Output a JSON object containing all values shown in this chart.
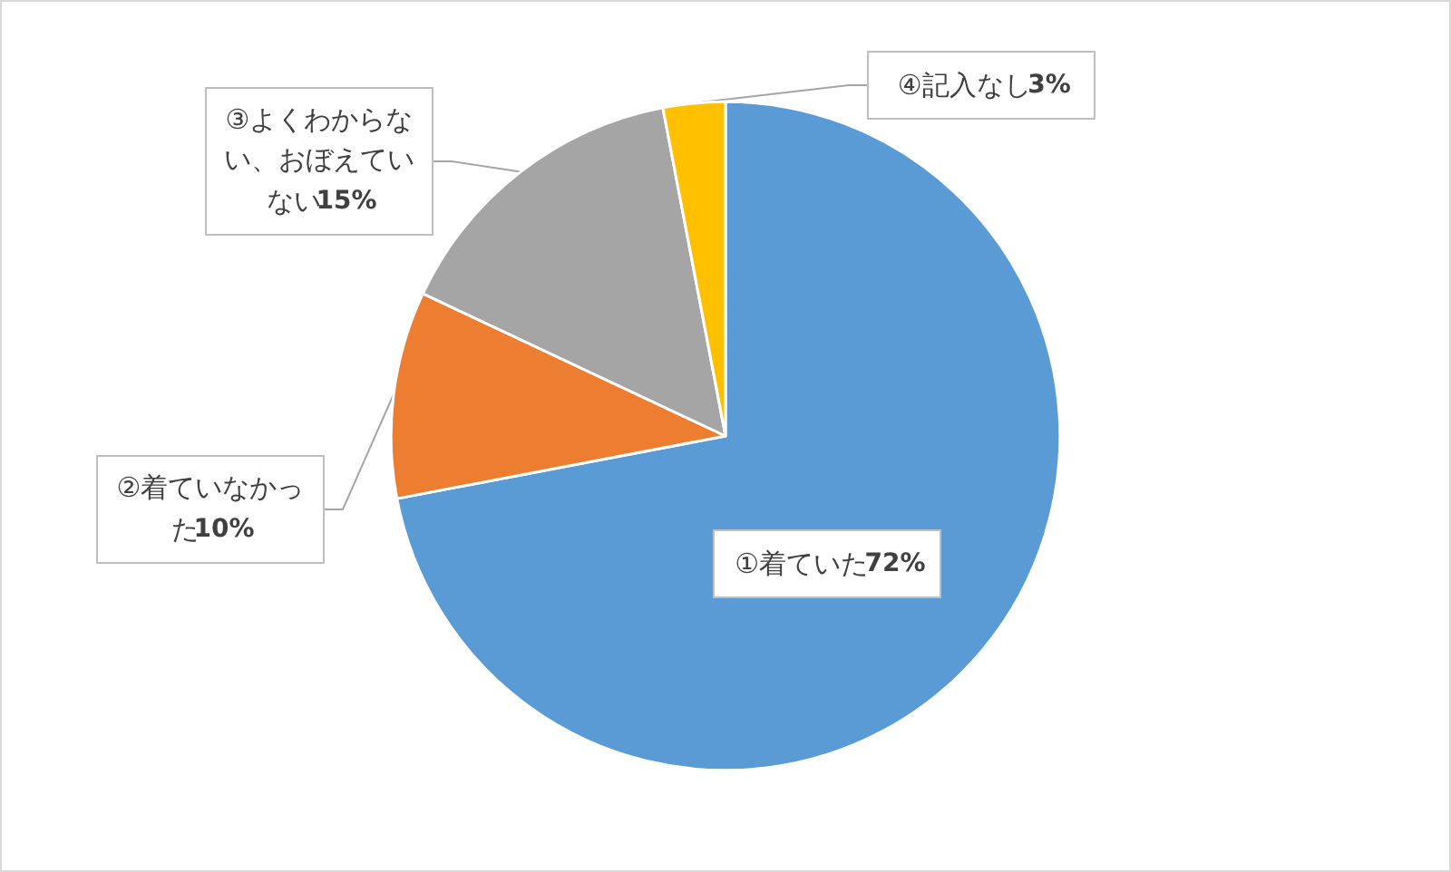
{
  "chart_data": {
    "type": "pie",
    "categories": [
      "①着ていた",
      "②着ていなかった",
      "③よくわからない、おぼえていない",
      "④記入なし"
    ],
    "values": [
      72,
      10,
      15,
      3
    ],
    "value_labels": [
      "72%",
      "10%",
      "15%",
      "3%"
    ],
    "colors": [
      "#5b9bd5",
      "#ed7d31",
      "#a5a5a5",
      "#ffc000"
    ],
    "legend": false
  }
}
